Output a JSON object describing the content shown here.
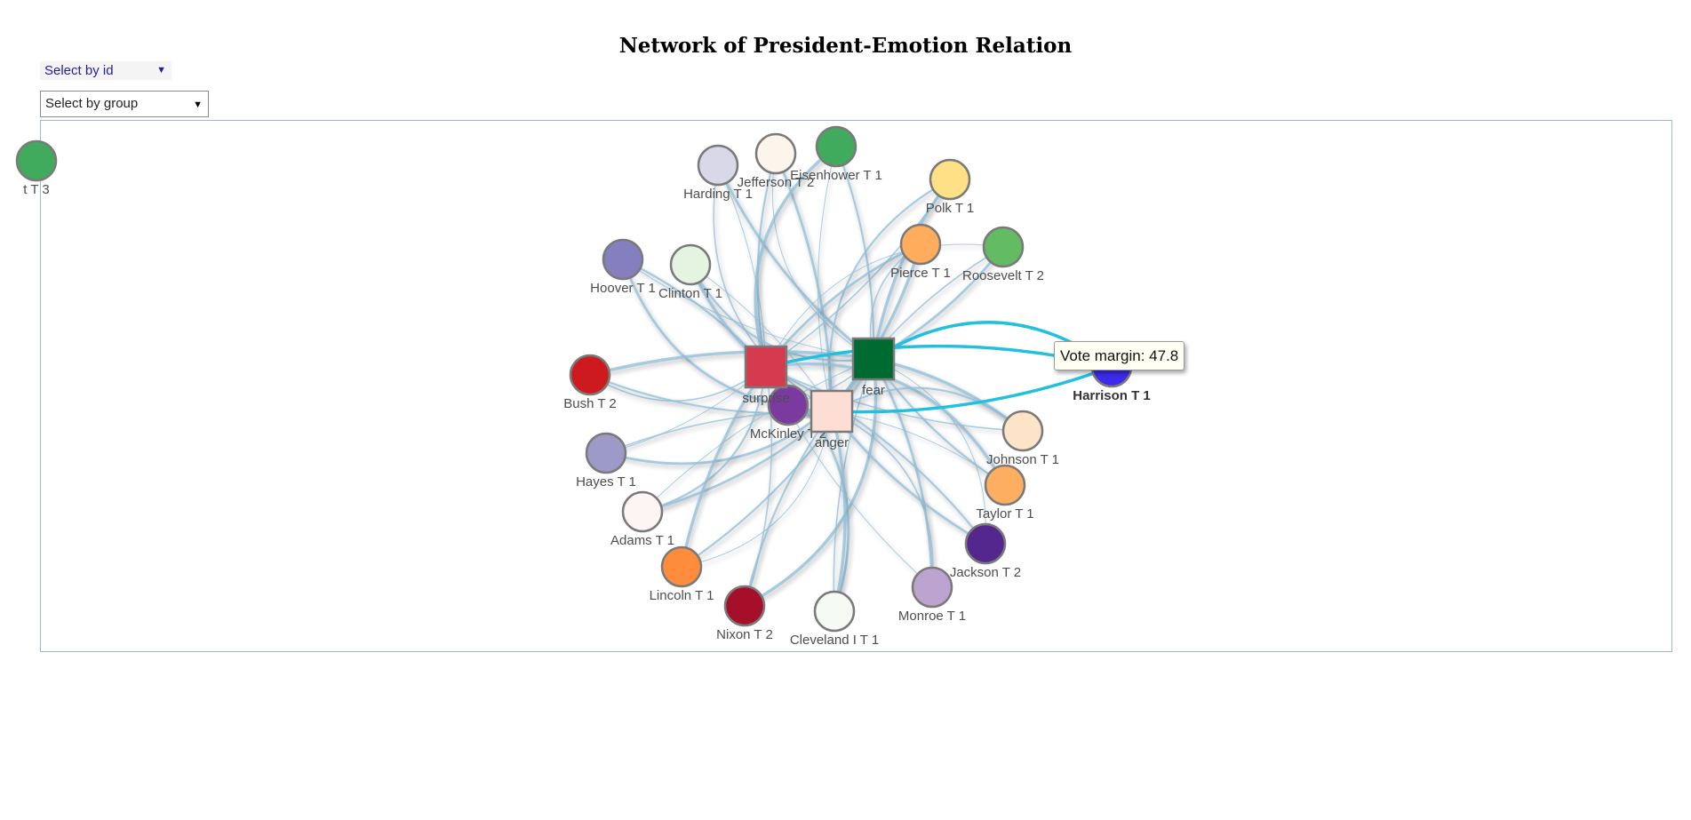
{
  "page": {
    "title": "Network of President-Emotion Relation"
  },
  "controls": {
    "select_id": {
      "label": "Select by id"
    },
    "select_group": {
      "label": "Select by group"
    }
  },
  "tooltip": {
    "text": "Vote margin: 47.8"
  },
  "network": {
    "emotions": [
      {
        "name": "surprise",
        "color": "#d63a4e"
      },
      {
        "name": "fear",
        "color": "#006b31"
      },
      {
        "name": "anger",
        "color": "#fdded4"
      }
    ],
    "presidents": [
      {
        "name": "Harding T 1",
        "color": "#d8d8e8"
      },
      {
        "name": "Jefferson T 2",
        "color": "#fdf5ec"
      },
      {
        "name": "Eisenhower T 1",
        "color": "#41ab5d"
      },
      {
        "name": "Polk T 1",
        "color": "#fee187"
      },
      {
        "name": "Pierce T 1",
        "color": "#fdad5c"
      },
      {
        "name": "Roosevelt T 2",
        "color": "#63bb63"
      },
      {
        "name": "Hoover T 1",
        "color": "#8480c0"
      },
      {
        "name": "Clinton T 1",
        "color": "#e4f4e0"
      },
      {
        "name": "Bush T 2",
        "color": "#cc1a1f"
      },
      {
        "name": "McKinley T 2",
        "color": "#7a3aa0"
      },
      {
        "name": "Hayes T 1",
        "color": "#9e9ac8"
      },
      {
        "name": "Adams T 1",
        "color": "#fdf5f2"
      },
      {
        "name": "Lincoln T 1",
        "color": "#fd8d3c"
      },
      {
        "name": "Nixon T 2",
        "color": "#a50f2a"
      },
      {
        "name": "Cleveland I T 1",
        "color": "#f5faf3"
      },
      {
        "name": "Monroe T 1",
        "color": "#bca3d0"
      },
      {
        "name": "Jackson T 2",
        "color": "#54278f"
      },
      {
        "name": "Taylor T 1",
        "color": "#fdae61"
      },
      {
        "name": "Johnson T 1",
        "color": "#fde3c8"
      },
      {
        "name": "Harrison T 1",
        "color": "#3b2bea"
      },
      {
        "name": "t T 3",
        "color": "#41ab5d"
      }
    ],
    "highlighted": "Harrison T 1"
  }
}
